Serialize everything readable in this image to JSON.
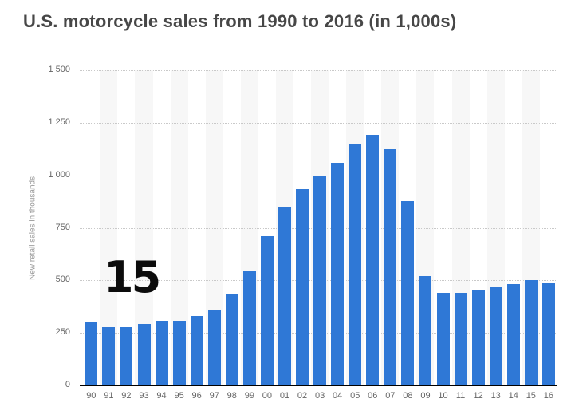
{
  "header": {
    "title": "U.S. motorcycle sales from 1990 to 2016 (in 1,000s)"
  },
  "overlay": {
    "text": "15"
  },
  "chart_data": {
    "type": "bar",
    "title": "U.S. motorcycle sales from 1990 to 2016 (in 1,000s)",
    "xlabel": "",
    "ylabel": "New retail sales in thousands",
    "categories": [
      "90",
      "91",
      "92",
      "93",
      "94",
      "95",
      "96",
      "97",
      "98",
      "99",
      "00",
      "01",
      "02",
      "03",
      "04",
      "05",
      "06",
      "07",
      "08",
      "09",
      "10",
      "11",
      "12",
      "13",
      "14",
      "15",
      "16"
    ],
    "values": [
      303,
      278,
      278,
      293,
      306,
      309,
      330,
      356,
      432,
      546,
      710,
      850,
      936,
      996,
      1059,
      1148,
      1191,
      1123,
      879,
      521,
      440,
      441,
      452,
      466,
      483,
      500,
      487
    ],
    "ylim": [
      0,
      1500
    ],
    "yticks": [
      0,
      250,
      500,
      750,
      1000,
      1250,
      1500
    ],
    "ytick_labels": [
      "0",
      "250",
      "500",
      "750",
      "1 000",
      "1 250",
      "1 500"
    ],
    "grid": "horizontal-dotted",
    "legend": "none",
    "annotation": "15",
    "colors": {
      "bar": "#2f78d6",
      "band": "#f7f7f7",
      "grid": "#c9c9c9",
      "axis_text": "#666666",
      "axis_line": "#000000",
      "title_text": "#474747",
      "ylabel_text": "#999999",
      "background": "#ffffff"
    }
  }
}
